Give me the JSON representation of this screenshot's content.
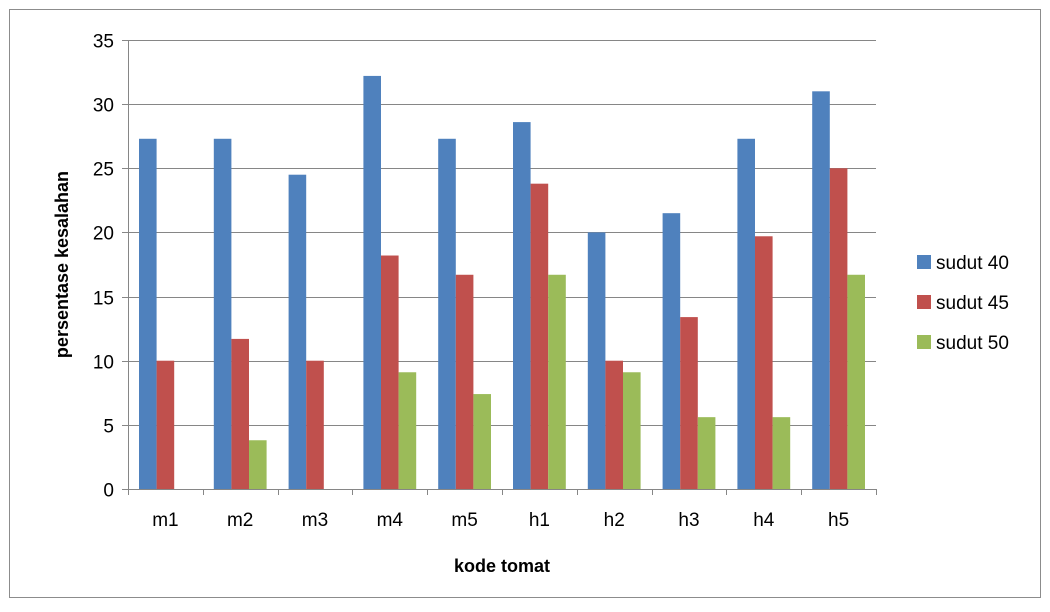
{
  "chart_data": {
    "type": "bar",
    "xlabel": "kode tomat",
    "ylabel": "persentase kesalahan",
    "ylim": [
      0,
      35
    ],
    "ytick_step": 5,
    "yticks": [
      "0",
      "5",
      "10",
      "15",
      "20",
      "25",
      "30",
      "35"
    ],
    "grid": true,
    "legend_position": "right",
    "categories": [
      "m1",
      "m2",
      "m3",
      "m4",
      "m5",
      "h1",
      "h2",
      "h3",
      "h4",
      "h5"
    ],
    "series": [
      {
        "name": "sudut 40",
        "color": "#4F81BD",
        "values": [
          27.3,
          27.3,
          24.5,
          32.2,
          27.3,
          28.6,
          20.0,
          21.5,
          27.3,
          31.0
        ]
      },
      {
        "name": "sudut 45",
        "color": "#C0504D",
        "values": [
          10.0,
          11.7,
          10.0,
          18.2,
          16.7,
          23.8,
          10.0,
          13.4,
          19.7,
          25.0
        ]
      },
      {
        "name": "sudut 50",
        "color": "#9BBB59",
        "values": [
          0,
          3.8,
          0,
          9.1,
          7.4,
          16.7,
          9.1,
          5.6,
          5.6,
          16.7
        ]
      }
    ]
  }
}
